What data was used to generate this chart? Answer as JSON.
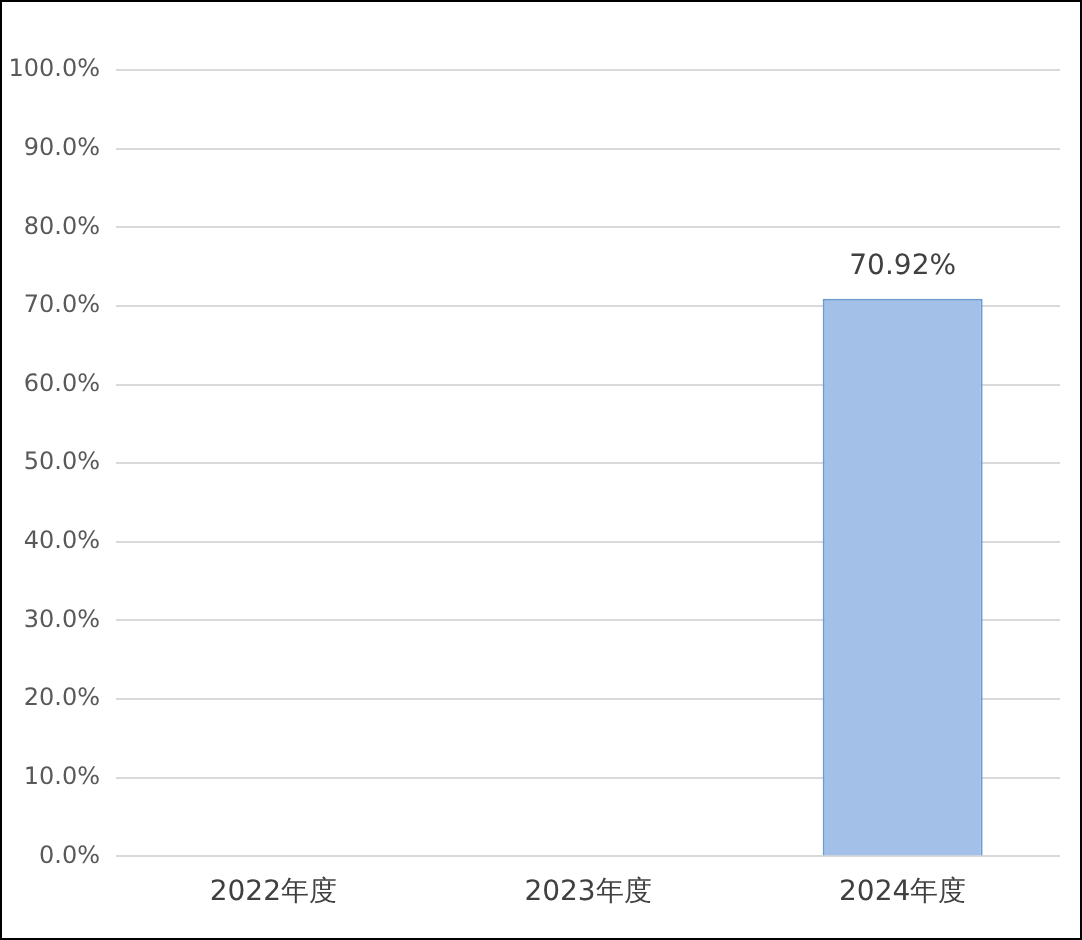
{
  "chart_data": {
    "type": "bar",
    "categories": [
      "2022年度",
      "2023年度",
      "2024年度"
    ],
    "values": [
      null,
      null,
      70.92
    ],
    "value_labels": [
      null,
      null,
      "70.92%"
    ],
    "color": "#a3c1e8",
    "ylim": [
      0,
      100
    ],
    "yticks": [
      {
        "value": 0,
        "label": "0.0%"
      },
      {
        "value": 10,
        "label": "10.0%"
      },
      {
        "value": 20,
        "label": "20.0%"
      },
      {
        "value": 30,
        "label": "30.0%"
      },
      {
        "value": 40,
        "label": "40.0%"
      },
      {
        "value": 50,
        "label": "50.0%"
      },
      {
        "value": 60,
        "label": "60.0%"
      },
      {
        "value": 70,
        "label": "70.0%"
      },
      {
        "value": 80,
        "label": "80.0%"
      },
      {
        "value": 90,
        "label": "90.0%"
      },
      {
        "value": 100,
        "label": "100.0%"
      }
    ],
    "grid": "y"
  }
}
